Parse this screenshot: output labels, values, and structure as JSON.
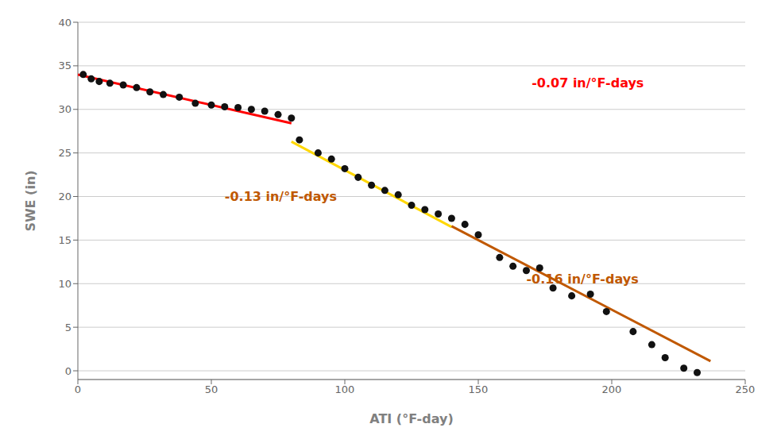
{
  "chart_data": {
    "type": "scatter",
    "xlabel": "ATI (°F-day)",
    "ylabel": "SWE (in)",
    "x": [
      2,
      5,
      8,
      12,
      17,
      22,
      27,
      32,
      38,
      44,
      50,
      55,
      60,
      65,
      70,
      75,
      80,
      83,
      90,
      95,
      100,
      105,
      110,
      115,
      120,
      125,
      130,
      135,
      140,
      145,
      150,
      158,
      163,
      168,
      173,
      178,
      185,
      192,
      198,
      208,
      215,
      220,
      227,
      232
    ],
    "values": [
      34.0,
      33.5,
      33.2,
      33.0,
      32.8,
      32.5,
      32.0,
      31.7,
      31.4,
      30.7,
      30.5,
      30.3,
      30.2,
      30.0,
      29.8,
      29.4,
      29.0,
      26.5,
      25.0,
      24.3,
      23.2,
      22.2,
      21.3,
      20.7,
      20.2,
      19.0,
      18.5,
      18.0,
      17.5,
      16.8,
      15.6,
      13.0,
      12.0,
      11.5,
      11.8,
      9.5,
      8.6,
      8.8,
      6.8,
      4.5,
      3.0,
      1.5,
      0.3,
      -0.2
    ],
    "color": "#111111",
    "lines": [
      {
        "x": [
          0,
          80
        ],
        "y": [
          34.0,
          28.4
        ],
        "color": "#FF0000"
      },
      {
        "x": [
          80,
          140
        ],
        "y": [
          26.3,
          16.5
        ],
        "color": "#FFD700"
      },
      {
        "x": [
          140,
          237
        ],
        "y": [
          16.6,
          1.1
        ],
        "color": "#C05800"
      }
    ],
    "annotations": [
      {
        "text": "-0.07 in/°F-days",
        "x": 170,
        "y": 32.5,
        "color": "#FF0000"
      },
      {
        "text": "-0.13 in/°F-days",
        "x": 55,
        "y": 19.5,
        "color": "#C05800"
      },
      {
        "text": "-0.16 in/°F-days",
        "x": 168,
        "y": 10.0,
        "color": "#C05800"
      }
    ],
    "xlim": [
      0,
      250
    ],
    "ylim": [
      -1,
      40
    ],
    "xticks": [
      0,
      50,
      100,
      150,
      200,
      250
    ],
    "yticks": [
      0,
      5,
      10,
      15,
      20,
      25,
      30,
      35,
      40
    ],
    "grid": "y"
  }
}
